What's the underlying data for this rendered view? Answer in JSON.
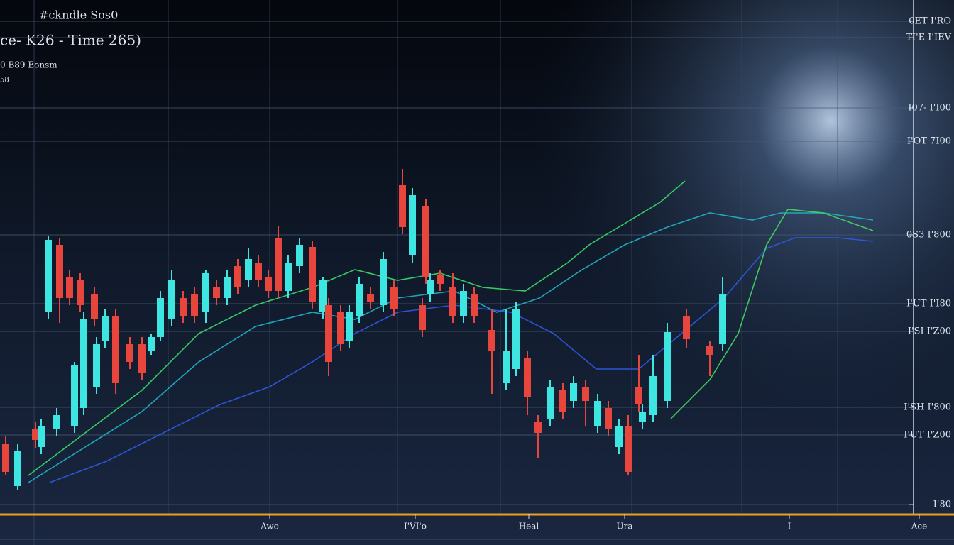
{
  "chart_data": {
    "type": "candlestick",
    "title": "#ckndle Sos0",
    "subtitle": "ce- K26 - Time 265)",
    "header_labels": [
      "0 B89 Eonsm",
      "58"
    ],
    "xlim": [
      0,
      1344
    ],
    "ylim": [
      0,
      725
    ],
    "xticks": [
      {
        "value": 380,
        "label": "Awo"
      },
      {
        "value": 585,
        "label": "I'VI'o"
      },
      {
        "value": 745,
        "label": "Heal"
      },
      {
        "value": 880,
        "label": "Ura"
      },
      {
        "value": 1112,
        "label": "I"
      },
      {
        "value": 1295,
        "label": "Ace"
      }
    ],
    "yticks": [
      {
        "value": 695,
        "label": "0ET I'RO"
      },
      {
        "value": 672,
        "label": "TI'E I'IEV"
      },
      {
        "value": 573,
        "label": "I07- I'I00"
      },
      {
        "value": 526,
        "label": "I'OT 7I00"
      },
      {
        "value": 394,
        "label": "0S3 I'800"
      },
      {
        "value": 297,
        "label": "I'UT I'I80"
      },
      {
        "value": 258,
        "label": "I'SI I'Z00"
      },
      {
        "value": 151,
        "label": "I'SH I'800"
      },
      {
        "value": 112,
        "label": "I'UT I'Z00"
      },
      {
        "value": 14,
        "label": "I'80"
      }
    ],
    "grid": true,
    "up_color": "#3de6e0",
    "down_color": "#e8453c",
    "x": [
      8,
      25,
      50,
      58,
      68,
      80,
      84,
      98,
      105,
      113,
      118,
      133,
      136,
      148,
      163,
      183,
      200,
      213,
      226,
      242,
      258,
      274,
      290,
      305,
      320,
      335,
      350,
      364,
      378,
      392,
      406,
      422,
      440,
      455,
      463,
      480,
      492,
      506,
      522,
      540,
      555,
      567,
      581,
      595,
      600,
      606,
      620,
      638,
      653,
      668,
      693,
      713,
      727,
      743,
      758,
      775,
      793,
      808,
      825,
      842,
      857,
      872,
      885,
      900,
      905,
      920,
      940,
      967,
      1000,
      1018
    ],
    "open": [
      100,
      40,
      120,
      95,
      285,
      120,
      380,
      335,
      125,
      330,
      150,
      310,
      180,
      245,
      280,
      240,
      240,
      230,
      250,
      275,
      305,
      310,
      285,
      320,
      305,
      350,
      330,
      355,
      335,
      390,
      315,
      350,
      377,
      285,
      295,
      285,
      245,
      280,
      310,
      295,
      320,
      465,
      365,
      295,
      435,
      310,
      337,
      320,
      280,
      310,
      260,
      185,
      205,
      220,
      130,
      135,
      175,
      160,
      180,
      125,
      150,
      95,
      125,
      180,
      130,
      140,
      160,
      280,
      237,
      240
    ],
    "close": [
      60,
      90,
      105,
      125,
      387,
      140,
      305,
      305,
      210,
      295,
      275,
      275,
      240,
      280,
      185,
      215,
      200,
      250,
      305,
      330,
      280,
      280,
      340,
      305,
      335,
      320,
      360,
      330,
      315,
      315,
      355,
      380,
      300,
      330,
      215,
      240,
      285,
      325,
      300,
      360,
      290,
      405,
      450,
      260,
      335,
      330,
      325,
      280,
      315,
      280,
      230,
      230,
      290,
      165,
      115,
      180,
      145,
      185,
      160,
      160,
      120,
      125,
      60,
      155,
      145,
      195,
      257,
      247,
      225,
      310
    ],
    "high": [
      110,
      100,
      130,
      135,
      392,
      150,
      390,
      345,
      215,
      340,
      285,
      320,
      250,
      290,
      290,
      250,
      250,
      255,
      315,
      345,
      315,
      320,
      345,
      330,
      345,
      360,
      375,
      365,
      345,
      407,
      365,
      390,
      385,
      335,
      305,
      295,
      295,
      335,
      320,
      370,
      330,
      487,
      460,
      305,
      445,
      340,
      345,
      340,
      325,
      320,
      290,
      290,
      300,
      230,
      140,
      190,
      185,
      195,
      190,
      170,
      160,
      135,
      140,
      225,
      155,
      225,
      270,
      290,
      245,
      335
    ],
    "low": [
      55,
      35,
      93,
      85,
      275,
      110,
      270,
      295,
      115,
      285,
      140,
      265,
      170,
      235,
      170,
      205,
      190,
      225,
      245,
      265,
      270,
      270,
      270,
      295,
      295,
      310,
      320,
      320,
      305,
      305,
      305,
      340,
      290,
      275,
      195,
      230,
      235,
      270,
      290,
      285,
      280,
      395,
      355,
      250,
      325,
      300,
      315,
      270,
      270,
      270,
      170,
      175,
      195,
      140,
      80,
      125,
      135,
      150,
      125,
      115,
      110,
      85,
      55,
      145,
      120,
      130,
      150,
      235,
      195,
      230
    ],
    "series": [
      {
        "color": "#3ddc6a",
        "x": [
          40,
          120,
          200,
          280,
          360,
          440,
          500,
          560,
          620,
          680,
          740,
          800,
          830,
          880,
          930,
          965
        ],
        "values": [
          55,
          115,
          175,
          255,
          295,
          320,
          345,
          330,
          340,
          320,
          315,
          355,
          380,
          410,
          440,
          470
        ]
      },
      {
        "color": "#22b4c4",
        "x": [
          40,
          120,
          200,
          280,
          360,
          440,
          500,
          560,
          640,
          700,
          760,
          820,
          880,
          940,
          1000,
          1060,
          1100,
          1160,
          1230
        ],
        "values": [
          45,
          95,
          145,
          215,
          265,
          285,
          275,
          305,
          315,
          285,
          305,
          345,
          380,
          405,
          425,
          415,
          425,
          425,
          415
        ]
      },
      {
        "color": "#2f5be6",
        "x": [
          70,
          150,
          230,
          310,
          380,
          440,
          500,
          560,
          640,
          720,
          780,
          840,
          900,
          960,
          1020,
          1080,
          1120,
          1180,
          1230
        ],
        "values": [
          45,
          75,
          115,
          155,
          180,
          215,
          255,
          285,
          295,
          285,
          255,
          205,
          205,
          255,
          305,
          375,
          390,
          390,
          385
        ]
      },
      {
        "color": "#46d860",
        "x": [
          945,
          1000,
          1040,
          1080,
          1110,
          1160,
          1230
        ],
        "values": [
          135,
          190,
          255,
          380,
          430,
          425,
          400
        ]
      }
    ]
  }
}
